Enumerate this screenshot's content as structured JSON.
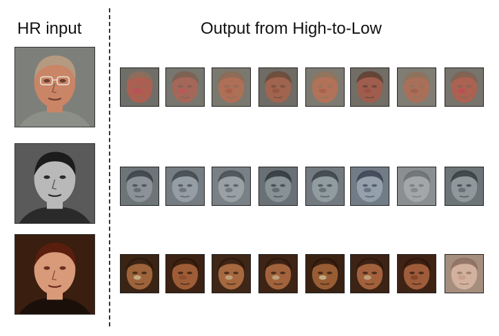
{
  "headings": {
    "hr_input": "HR input",
    "output": "Output from High-to-Low"
  },
  "rows": [
    {
      "name": "row-1",
      "palette": {
        "bg": "#7d7f7a",
        "skin": "#c98566",
        "hair": "#b59a82",
        "shirt": "#8c8e88",
        "feature": "#6b3e30",
        "glasses": true
      },
      "thumb_palettes": [
        {
          "bg": "#6f6e68",
          "skin": "#b25d4e",
          "hair": "#8a6f5e",
          "accent": "#c24a5c"
        },
        {
          "bg": "#77766f",
          "skin": "#a86656",
          "hair": "#7a6152",
          "accent": "#c8505e"
        },
        {
          "bg": "#7a786f",
          "skin": "#b26e53",
          "hair": "#8a6c57",
          "accent": "#a85a4c"
        },
        {
          "bg": "#6e6c64",
          "skin": "#a5644d",
          "hair": "#6a4a3a",
          "accent": "#935142"
        },
        {
          "bg": "#7d7b71",
          "skin": "#b77157",
          "hair": "#8e745e",
          "accent": "#a95c4b"
        },
        {
          "bg": "#716e66",
          "skin": "#a35b4a",
          "hair": "#5e3f33",
          "accent": "#9a4e40"
        },
        {
          "bg": "#7f7d74",
          "skin": "#ae6e56",
          "hair": "#8b735f",
          "accent": "#9b5d4b"
        },
        {
          "bg": "#76746c",
          "skin": "#b1604f",
          "hair": "#7d6454",
          "accent": "#c24858"
        }
      ]
    },
    {
      "name": "row-2",
      "palette": {
        "bg": "#5a5a5a",
        "skin": "#b9b9b9",
        "hair": "#1c1c1c",
        "shirt": "#2a2a2a",
        "feature": "#2b2b2b",
        "glasses": false
      },
      "thumb_palettes": [
        {
          "bg": "#6e7579",
          "skin": "#8e979b",
          "hair": "#384045",
          "accent": "#5a6468"
        },
        {
          "bg": "#767d82",
          "skin": "#9aa2a8",
          "hair": "#3f464b",
          "accent": "#606a70"
        },
        {
          "bg": "#7a8186",
          "skin": "#9ca4a9",
          "hair": "#454d52",
          "accent": "#656f74"
        },
        {
          "bg": "#6a7176",
          "skin": "#8c959a",
          "hair": "#2f363b",
          "accent": "#55606a"
        },
        {
          "bg": "#737a7f",
          "skin": "#95a0a5",
          "hair": "#3a4247",
          "accent": "#5b666c"
        },
        {
          "bg": "#727c86",
          "skin": "#98a4b0",
          "hair": "#394150",
          "accent": "#5d6878"
        },
        {
          "bg": "#8b8f91",
          "skin": "#a6aaac",
          "hair": "#6b7072",
          "accent": "#7d8284"
        },
        {
          "bg": "#6d7478",
          "skin": "#939ca0",
          "hair": "#353c40",
          "accent": "#59646a"
        }
      ]
    },
    {
      "name": "row-3",
      "palette": {
        "bg": "#3a1e10",
        "skin": "#d99a7a",
        "hair": "#5a1e0e",
        "shirt": "#1b0f0a",
        "feature": "#6b2e1e",
        "glasses": false
      },
      "thumb_palettes": [
        {
          "bg": "#3a2414",
          "skin": "#a86a3e",
          "hair": "#2a170d",
          "accent": "#d3c29a"
        },
        {
          "bg": "#3c2213",
          "skin": "#a9643c",
          "hair": "#2c160b",
          "accent": "#8a4a2a"
        },
        {
          "bg": "#3f2616",
          "skin": "#b07044",
          "hair": "#2e190e",
          "accent": "#c8b08a"
        },
        {
          "bg": "#3d2415",
          "skin": "#ad6a40",
          "hair": "#2d180d",
          "accent": "#c7b48e"
        },
        {
          "bg": "#3a2213",
          "skin": "#a36438",
          "hair": "#29150b",
          "accent": "#d1c4a0"
        },
        {
          "bg": "#3c2314",
          "skin": "#ad6840",
          "hair": "#2b170c",
          "accent": "#c9b48c"
        },
        {
          "bg": "#3e2315",
          "skin": "#a8633e",
          "hair": "#2b150b",
          "accent": "#7a3f24"
        },
        {
          "bg": "#a58e7e",
          "skin": "#d7b5a2",
          "hair": "#8a6d5e",
          "accent": "#c49a86"
        }
      ]
    }
  ]
}
